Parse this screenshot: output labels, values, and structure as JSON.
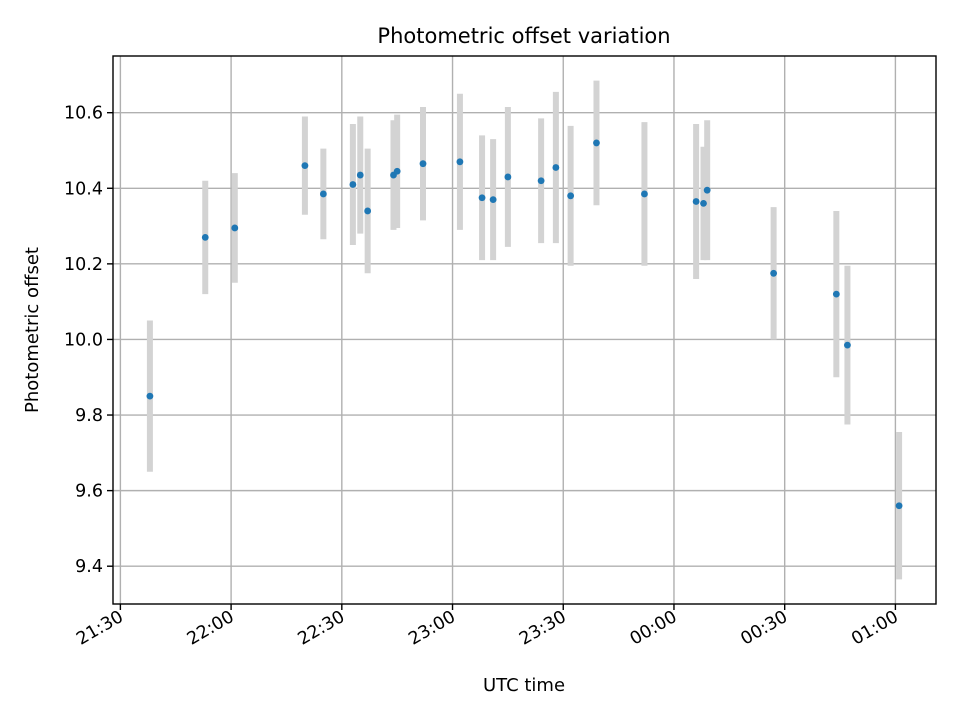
{
  "chart_data": {
    "type": "scatter",
    "title": "Photometric offset variation",
    "xlabel": "UTC time",
    "ylabel": "Photometric offset",
    "x_axis": "datetime",
    "xlim": [
      "21:28",
      "01:11"
    ],
    "ylim": [
      9.3,
      10.75
    ],
    "grid": true,
    "x_ticks": [
      "21:30",
      "22:00",
      "22:30",
      "23:00",
      "23:30",
      "00:00",
      "00:30",
      "01:00"
    ],
    "y_ticks": [
      "9.4",
      "9.6",
      "9.8",
      "10.0",
      "10.2",
      "10.4",
      "10.6"
    ],
    "colors": {
      "point": "#1f77b4",
      "errorbar": "#d3d3d3",
      "grid": "#b0b0b0"
    },
    "points": [
      {
        "t": "21:38",
        "y": 9.85,
        "err": 0.2
      },
      {
        "t": "21:53",
        "y": 10.27,
        "err": 0.15
      },
      {
        "t": "22:01",
        "y": 10.295,
        "err": 0.145
      },
      {
        "t": "22:20",
        "y": 10.46,
        "err": 0.13
      },
      {
        "t": "22:25",
        "y": 10.385,
        "err": 0.12
      },
      {
        "t": "22:33",
        "y": 10.41,
        "err": 0.16
      },
      {
        "t": "22:35",
        "y": 10.435,
        "err": 0.155
      },
      {
        "t": "22:37",
        "y": 10.34,
        "err": 0.165
      },
      {
        "t": "22:44",
        "y": 10.435,
        "err": 0.145
      },
      {
        "t": "22:45",
        "y": 10.445,
        "err": 0.15
      },
      {
        "t": "22:52",
        "y": 10.465,
        "err": 0.15
      },
      {
        "t": "23:02",
        "y": 10.47,
        "err": 0.18
      },
      {
        "t": "23:08",
        "y": 10.375,
        "err": 0.165
      },
      {
        "t": "23:11",
        "y": 10.37,
        "err": 0.16
      },
      {
        "t": "23:15",
        "y": 10.43,
        "err": 0.185
      },
      {
        "t": "23:24",
        "y": 10.42,
        "err": 0.165
      },
      {
        "t": "23:28",
        "y": 10.455,
        "err": 0.2
      },
      {
        "t": "23:32",
        "y": 10.38,
        "err": 0.185
      },
      {
        "t": "23:39",
        "y": 10.52,
        "err": 0.165
      },
      {
        "t": "23:52",
        "y": 10.385,
        "err": 0.19
      },
      {
        "t": "00:06",
        "y": 10.365,
        "err": 0.205
      },
      {
        "t": "00:08",
        "y": 10.36,
        "err": 0.15
      },
      {
        "t": "00:09",
        "y": 10.395,
        "err": 0.185
      },
      {
        "t": "00:27",
        "y": 10.175,
        "err": 0.175
      },
      {
        "t": "00:44",
        "y": 10.12,
        "err": 0.22
      },
      {
        "t": "00:47",
        "y": 9.985,
        "err": 0.21
      },
      {
        "t": "01:01",
        "y": 9.56,
        "err": 0.195
      }
    ]
  }
}
